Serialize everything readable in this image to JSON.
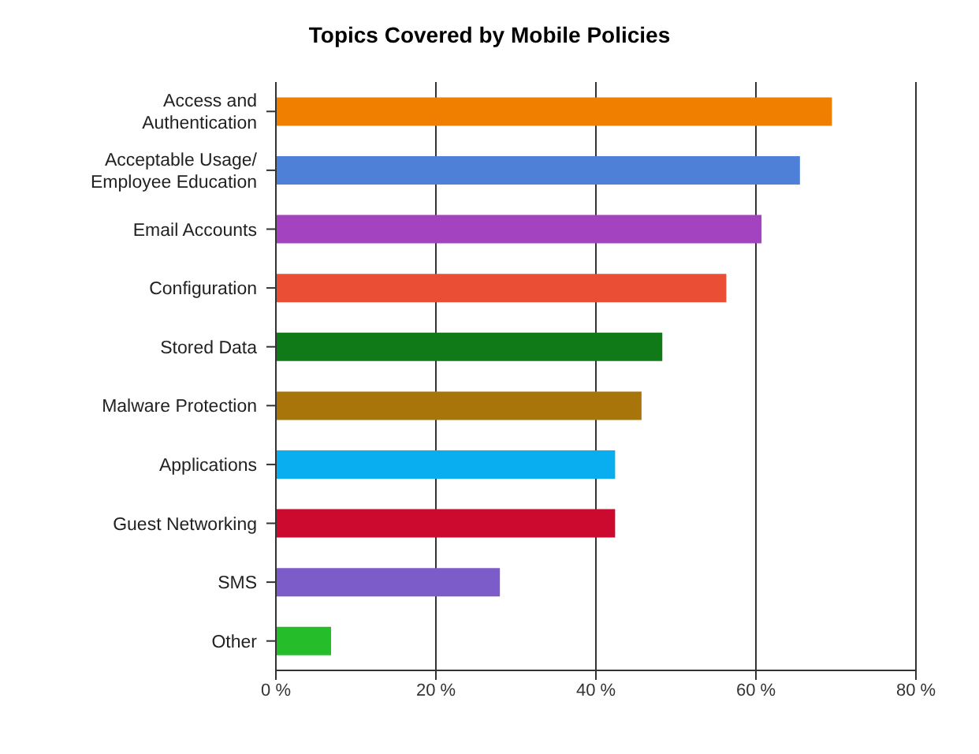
{
  "chart_data": {
    "type": "bar",
    "orientation": "horizontal",
    "title": "Topics Covered by Mobile Policies",
    "categories": [
      "Access and Authentication",
      "Acceptable Usage/ Employee Education",
      "Email Accounts",
      "Configuration",
      "Stored Data",
      "Malware Protection",
      "Applications",
      "Guest Networking",
      "SMS",
      "Other"
    ],
    "values": [
      69.5,
      65.5,
      60.7,
      56.3,
      48.3,
      45.7,
      42.4,
      42.4,
      28,
      6.9
    ],
    "colors": [
      "#f07f00",
      "#4f80d8",
      "#a443c0",
      "#ea4f36",
      "#0f7a17",
      "#a8750a",
      "#08aef0",
      "#cc0a30",
      "#7c5cc8",
      "#26bd2a"
    ],
    "xlim": [
      0,
      80
    ],
    "xticks": [
      {
        "value": 0,
        "label": "0 %"
      },
      {
        "value": 20,
        "label": "20 %"
      },
      {
        "value": 40,
        "label": "40 %"
      },
      {
        "value": 60,
        "label": "60 %"
      },
      {
        "value": 80,
        "label": "80 %"
      }
    ],
    "grid": "x"
  }
}
